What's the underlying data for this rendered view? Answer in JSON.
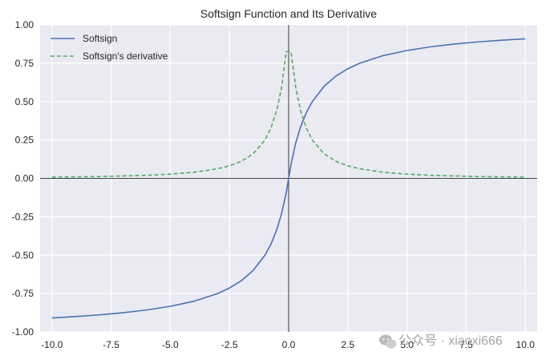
{
  "chart_data": {
    "type": "line",
    "title": "Softsign Function and Its Derivative",
    "xlabel": "",
    "ylabel": "",
    "xlim": [
      -10.5,
      10.5
    ],
    "ylim": [
      -1.0,
      1.0
    ],
    "xticks": [
      -10.0,
      -7.5,
      -5.0,
      -2.5,
      0.0,
      2.5,
      5.0,
      7.5,
      10.0
    ],
    "xtick_labels": [
      "-10.0",
      "-7.5",
      "-5.0",
      "-2.5",
      "0.0",
      "2.5",
      "5.0",
      "7.5",
      "10.0"
    ],
    "yticks": [
      1.0,
      0.75,
      0.5,
      0.25,
      0.0,
      -0.25,
      -0.5,
      -0.75,
      -1.0
    ],
    "ytick_labels": [
      "1.00",
      "0.75",
      "0.50",
      "0.25",
      "0.00",
      "-0.25",
      "-0.50",
      "-0.75",
      "-1.00"
    ],
    "grid": true,
    "legend_position": "top-left",
    "background_color": "#eaeaf2",
    "axis_lines_color": "#000000",
    "series": [
      {
        "name": "Softsign",
        "style": "solid",
        "color": "#4c72b0",
        "x": [
          -10,
          -9,
          -8,
          -7,
          -6,
          -5,
          -4,
          -3,
          -2.5,
          -2,
          -1.5,
          -1,
          -0.75,
          -0.5,
          -0.3,
          -0.1,
          0,
          0.1,
          0.3,
          0.5,
          0.75,
          1,
          1.5,
          2,
          2.5,
          3,
          4,
          5,
          6,
          7,
          8,
          9,
          10
        ],
        "values": [
          -0.909,
          -0.9,
          -0.889,
          -0.875,
          -0.857,
          -0.833,
          -0.8,
          -0.75,
          -0.714,
          -0.667,
          -0.6,
          -0.5,
          -0.429,
          -0.333,
          -0.231,
          -0.091,
          0,
          0.091,
          0.231,
          0.333,
          0.429,
          0.5,
          0.6,
          0.667,
          0.714,
          0.75,
          0.8,
          0.833,
          0.857,
          0.875,
          0.889,
          0.9,
          0.909
        ]
      },
      {
        "name": "Softsign's derivative",
        "style": "dashed",
        "color": "#55a868",
        "x": [
          -10,
          -9,
          -8,
          -7,
          -6,
          -5,
          -4,
          -3,
          -2.5,
          -2,
          -1.5,
          -1,
          -0.75,
          -0.5,
          -0.3,
          -0.1,
          0,
          0.1,
          0.3,
          0.5,
          0.75,
          1,
          1.5,
          2,
          2.5,
          3,
          4,
          5,
          6,
          7,
          8,
          9,
          10
        ],
        "values": [
          0.008,
          0.01,
          0.012,
          0.016,
          0.02,
          0.028,
          0.04,
          0.063,
          0.082,
          0.111,
          0.16,
          0.25,
          0.327,
          0.444,
          0.592,
          0.826,
          0.826,
          0.826,
          0.592,
          0.444,
          0.327,
          0.25,
          0.16,
          0.111,
          0.082,
          0.063,
          0.04,
          0.028,
          0.02,
          0.016,
          0.012,
          0.01,
          0.008
        ]
      }
    ]
  },
  "watermark": {
    "text": "公众号 · xiaoxi666",
    "icon": "wechat-icon"
  }
}
